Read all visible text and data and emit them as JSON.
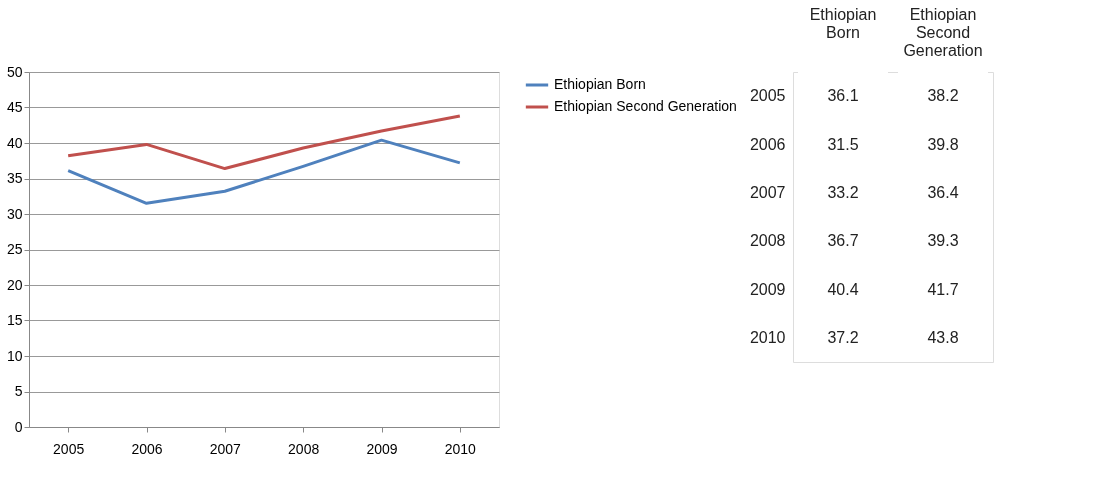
{
  "chart_data": [
    {
      "type": "line",
      "categories": [
        "2005",
        "2006",
        "2007",
        "2008",
        "2009",
        "2010"
      ],
      "series": [
        {
          "name": "Ethiopian Born",
          "color": "#4f81bd",
          "values": [
            36.1,
            31.5,
            33.2,
            36.7,
            40.4,
            37.2
          ]
        },
        {
          "name": "Ethiopian Second Generation",
          "color": "#c0504d",
          "values": [
            38.2,
            39.8,
            36.4,
            39.3,
            41.7,
            43.8
          ]
        }
      ],
      "ylim": [
        0,
        50
      ],
      "yticks": [
        0,
        5,
        10,
        15,
        20,
        25,
        30,
        35,
        40,
        45,
        50
      ],
      "grid": "y",
      "legend": "right",
      "marker": "none",
      "line_style": "solid"
    },
    {
      "type": "heatmap",
      "categories": [
        "Ethiopian Born",
        "Ethiopian Second Generation"
      ],
      "y_categories": [
        "2005",
        "2006",
        "2007",
        "2008",
        "2009",
        "2010"
      ],
      "cells": [
        [
          36.1,
          38.2
        ],
        [
          31.5,
          39.8
        ],
        [
          33.2,
          36.4
        ],
        [
          36.7,
          39.3
        ],
        [
          40.4,
          41.7
        ],
        [
          37.2,
          43.8
        ]
      ],
      "data_labels": true
    }
  ]
}
